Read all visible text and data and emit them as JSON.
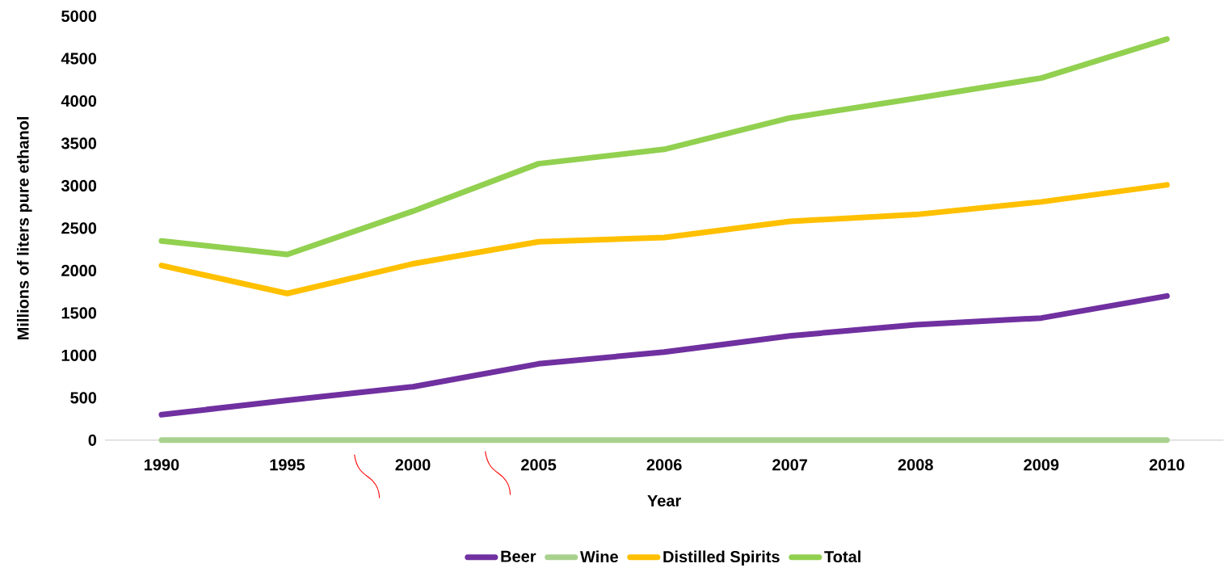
{
  "chart_data": {
    "type": "line",
    "xlabel": "Year",
    "ylabel": "Millions of liters pure ethanol",
    "categories": [
      "1990",
      "1995",
      "2000",
      "2005",
      "2006",
      "2007",
      "2008",
      "2009",
      "2010"
    ],
    "series": [
      {
        "name": "Beer",
        "color": "#7030a0",
        "values": [
          300,
          470,
          630,
          900,
          1040,
          1230,
          1360,
          1440,
          1700
        ]
      },
      {
        "name": "Wine",
        "color": "#a9d18e",
        "values": [
          0,
          0,
          0,
          0,
          0,
          0,
          0,
          0,
          0
        ]
      },
      {
        "name": "Distilled Spirits",
        "color": "#ffc000",
        "values": [
          2060,
          1730,
          2080,
          2340,
          2390,
          2580,
          2660,
          2810,
          3010
        ]
      },
      {
        "name": "Total",
        "color": "#92d050",
        "values": [
          2350,
          2190,
          2700,
          3260,
          3430,
          3800,
          4030,
          4270,
          4730
        ]
      }
    ],
    "ylim": [
      0,
      5000
    ],
    "yticks": [
      0,
      500,
      1000,
      1500,
      2000,
      2500,
      3000,
      3500,
      4000,
      4500,
      5000
    ],
    "legend": "bottom",
    "marker": "none",
    "line_style": "solid"
  }
}
